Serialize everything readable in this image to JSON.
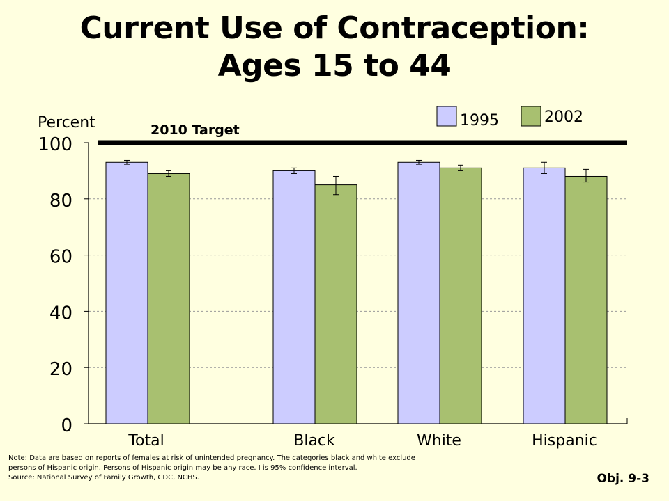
{
  "title_line1": "Current Use of Contraception:",
  "title_line2": "Ages 15 to 44",
  "chart_data": {
    "type": "bar",
    "ylabel": "Percent",
    "ylim": [
      0,
      100
    ],
    "yticks": [
      "0",
      "20",
      "40",
      "60",
      "80",
      "100"
    ],
    "grid": "dashed horizontal",
    "legend_placement": "top-right",
    "categories": [
      "Total",
      "Black",
      "White",
      "Hispanic"
    ],
    "series": [
      {
        "name": "1995",
        "color": "#ccccff",
        "values": [
          93,
          90,
          93,
          91
        ],
        "ci_low": [
          92.3,
          89,
          92.3,
          89
        ],
        "ci_high": [
          93.7,
          91,
          93.7,
          93
        ]
      },
      {
        "name": "2002",
        "color": "#a8c070",
        "values": [
          89,
          85,
          91,
          88
        ],
        "ci_low": [
          88,
          81.5,
          90,
          86
        ],
        "ci_high": [
          90,
          88,
          92,
          90.5
        ]
      }
    ],
    "target": {
      "label": "2010 Target",
      "value": 100
    }
  },
  "note_lines": [
    "Note: Data are based on reports of females at risk of unintended pregnancy. The categories black and white exclude",
    "persons of Hispanic origin. Persons of Hispanic origin may be any race. I is 95% confidence interval.",
    "Source: National Survey of Family Growth, CDC, NCHS."
  ],
  "objective": "Obj. 9-3"
}
